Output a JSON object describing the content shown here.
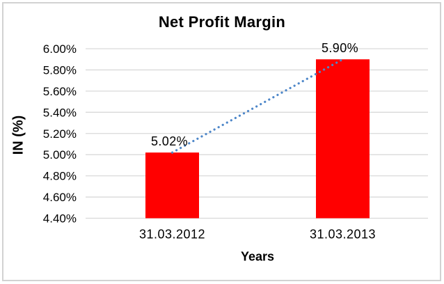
{
  "chart_data": {
    "type": "bar",
    "title": "Net Profit Margin",
    "xlabel": "Years",
    "ylabel": "IN (%)",
    "categories": [
      "31.03.2012",
      "31.03.2013"
    ],
    "series": [
      {
        "name": "Net Profit Margin",
        "values": [
          5.02,
          5.9
        ]
      }
    ],
    "value_labels": [
      "5.02%",
      "5.90%"
    ],
    "ylim": [
      4.4,
      6.0
    ],
    "ytick_values": [
      4.4,
      4.6,
      4.8,
      5.0,
      5.2,
      5.4,
      5.6,
      5.8,
      6.0
    ],
    "ytick_labels": [
      "4.40%",
      "4.60%",
      "4.80%",
      "5.00%",
      "5.20%",
      "5.40%",
      "5.60%",
      "5.80%",
      "6.00%"
    ],
    "grid": true,
    "legend": "none",
    "trendline": {
      "type": "linear",
      "style": "dotted",
      "color": "#4e87c9"
    },
    "colors": {
      "bar": "#ff0000",
      "gridline": "#d9d9d9",
      "text": "#000000",
      "frame_border": "#d2d2d2",
      "background": "#ffffff"
    }
  }
}
